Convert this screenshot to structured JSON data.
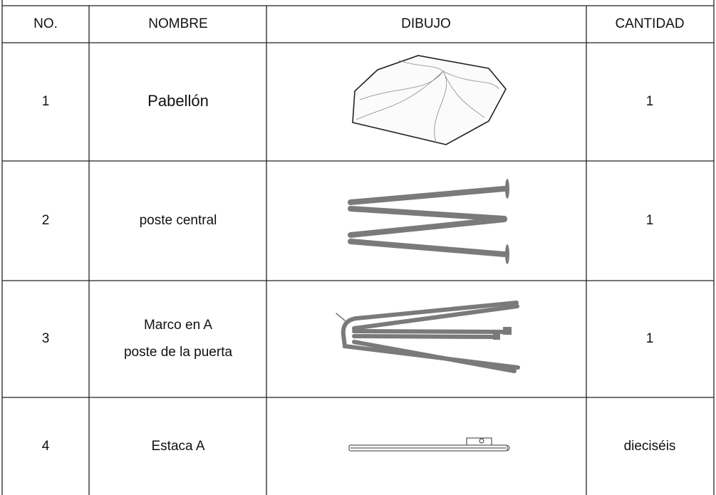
{
  "table": {
    "header": [
      "NO.",
      "NOMBRE",
      "DIBUJO",
      "CANTIDAD"
    ],
    "rows": [
      {
        "no": "1",
        "name": [
          "Pabellón"
        ],
        "quantity": "1"
      },
      {
        "no": "2",
        "name": [
          "poste central"
        ],
        "quantity": "1"
      },
      {
        "no": "3",
        "name": [
          "Marco en A",
          "poste de la puerta"
        ],
        "quantity": "1"
      },
      {
        "no": "4",
        "name": [
          "Estaca A"
        ],
        "quantity": "dieciséis"
      }
    ]
  }
}
